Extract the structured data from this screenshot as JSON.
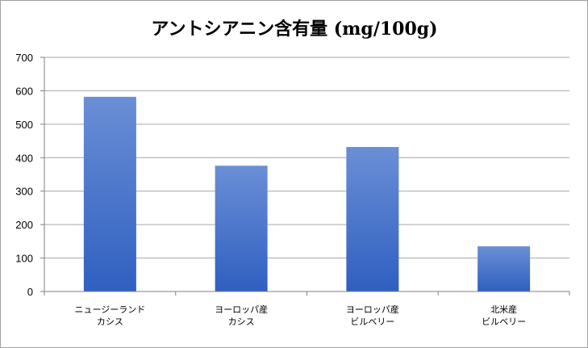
{
  "chart_data": {
    "type": "bar",
    "title": "アントシアニン含有量 (mg/100g)",
    "xlabel": "",
    "ylabel": "",
    "categories": [
      [
        "ニュージーランド",
        "カシス"
      ],
      [
        "ヨーロッパ産",
        "カシス"
      ],
      [
        "ヨーロッパ産",
        "ビルベリー"
      ],
      [
        "北米産",
        "ビルベリー"
      ]
    ],
    "values": [
      582,
      376,
      432,
      135
    ],
    "ylim": [
      0,
      700
    ],
    "yticks": [
      0,
      100,
      200,
      300,
      400,
      500,
      600,
      700
    ],
    "grid": true,
    "legend": "none",
    "colors": {
      "bar_top": "#6a8fd6",
      "bar_bottom": "#2f5fc0",
      "grid": "#a6a6a6",
      "axis": "#808080"
    }
  }
}
